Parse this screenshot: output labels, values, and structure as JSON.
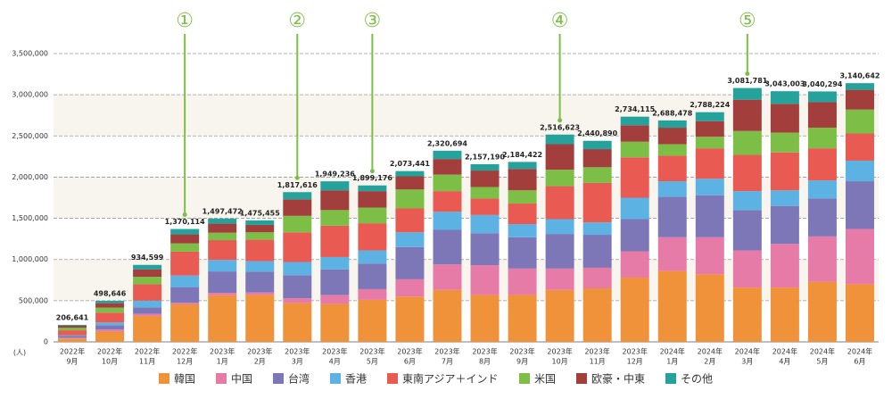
{
  "chart_data": {
    "type": "stacked_bar",
    "y_unit": "(人)",
    "categories": [
      [
        "2022年",
        "9月"
      ],
      [
        "2022年",
        "10月"
      ],
      [
        "2022年",
        "11月"
      ],
      [
        "2022年",
        "12月"
      ],
      [
        "2023年",
        "1月"
      ],
      [
        "2023年",
        "2月"
      ],
      [
        "2023年",
        "3月"
      ],
      [
        "2023年",
        "4月"
      ],
      [
        "2023年",
        "5月"
      ],
      [
        "2023年",
        "6月"
      ],
      [
        "2023年",
        "7月"
      ],
      [
        "2023年",
        "8月"
      ],
      [
        "2023年",
        "9月"
      ],
      [
        "2023年",
        "10月"
      ],
      [
        "2023年",
        "11月"
      ],
      [
        "2023年",
        "12月"
      ],
      [
        "2024年",
        "1月"
      ],
      [
        "2024年",
        "2月"
      ],
      [
        "2024年",
        "3月"
      ],
      [
        "2024年",
        "4月"
      ],
      [
        "2024年",
        "5月"
      ],
      [
        "2024年",
        "6月"
      ]
    ],
    "series": [
      {
        "name": "韓国",
        "color": "#f0923a",
        "values": [
          40000,
          125000,
          315000,
          455000,
          565000,
          570000,
          470000,
          460000,
          510000,
          550000,
          630000,
          570000,
          570000,
          630000,
          650000,
          780000,
          860000,
          820000,
          660000,
          660000,
          730000,
          700000
        ]
      },
      {
        "name": "中国",
        "color": "#e77ba8",
        "values": [
          10000,
          25000,
          25000,
          20000,
          30000,
          30000,
          60000,
          110000,
          130000,
          210000,
          310000,
          360000,
          320000,
          260000,
          250000,
          320000,
          410000,
          450000,
          450000,
          530000,
          550000,
          670000
        ]
      },
      {
        "name": "台湾",
        "color": "#7d77b8",
        "values": [
          20000,
          50000,
          80000,
          190000,
          260000,
          250000,
          280000,
          310000,
          310000,
          390000,
          420000,
          390000,
          380000,
          420000,
          400000,
          390000,
          490000,
          510000,
          490000,
          460000,
          460000,
          580000
        ]
      },
      {
        "name": "香港",
        "color": "#5cb2e3",
        "values": [
          10000,
          35000,
          80000,
          140000,
          140000,
          130000,
          160000,
          150000,
          160000,
          180000,
          220000,
          220000,
          160000,
          180000,
          150000,
          260000,
          190000,
          200000,
          230000,
          190000,
          220000,
          250000
        ]
      },
      {
        "name": "東南アジア＋インド",
        "color": "#e85a52",
        "values": [
          60000,
          120000,
          200000,
          290000,
          240000,
          260000,
          360000,
          380000,
          330000,
          290000,
          250000,
          200000,
          250000,
          400000,
          480000,
          490000,
          310000,
          370000,
          440000,
          460000,
          390000,
          330000
        ]
      },
      {
        "name": "米国",
        "color": "#7dbf46",
        "values": [
          30000,
          60000,
          90000,
          100000,
          90000,
          90000,
          200000,
          190000,
          190000,
          230000,
          200000,
          140000,
          160000,
          200000,
          190000,
          190000,
          140000,
          140000,
          290000,
          240000,
          250000,
          290000
        ]
      },
      {
        "name": "欧豪・中東",
        "color": "#a23f3d",
        "values": [
          25000,
          55000,
          90000,
          110000,
          110000,
          90000,
          200000,
          240000,
          200000,
          160000,
          190000,
          200000,
          260000,
          310000,
          220000,
          200000,
          200000,
          190000,
          380000,
          350000,
          310000,
          240000
        ]
      },
      {
        "name": "その他",
        "color": "#25a29c",
        "values": [
          11641,
          28646,
          54599,
          65114,
          62472,
          55455,
          87616,
          109236,
          69176,
          63441,
          100694,
          77190,
          84422,
          116623,
          100890,
          104115,
          88478,
          108224,
          141781,
          153003,
          130294,
          80642
        ]
      }
    ],
    "totals": [
      206641,
      498646,
      934599,
      1370114,
      1497472,
      1475455,
      1817616,
      1949236,
      1899176,
      2073441,
      2320694,
      2157190,
      2184422,
      2516623,
      2440890,
      2734115,
      2688478,
      2788224,
      3081781,
      3043003,
      3040294,
      3140642
    ],
    "totals_labels": [
      "206,641",
      "498,646",
      "934,599",
      "1,370,114",
      "1,497,472",
      "1,475,455",
      "1,817,616",
      "1,949,236",
      "1,899,176",
      "2,073,441",
      "2,320,694",
      "2,157,190",
      "2,184,422",
      "2,516,623",
      "2,440,890",
      "2,734,115",
      "2,688,478",
      "2,788,224",
      "3,081,781",
      "3,043,003",
      "3,040,294",
      "3,140,642"
    ],
    "annotations": [
      {
        "label": "①",
        "at": 3
      },
      {
        "label": "②",
        "at": 6
      },
      {
        "label": "③",
        "at": 8
      },
      {
        "label": "④",
        "at": 13
      },
      {
        "label": "⑤",
        "at": 18
      }
    ],
    "annotation_color": "#7dbf46",
    "ylim": [
      0,
      3500000
    ],
    "yticks": [
      {
        "value": 0,
        "label": "0"
      },
      {
        "value": 500000,
        "label": "500,000"
      },
      {
        "value": 1000000,
        "label": "1,000,000"
      },
      {
        "value": 1500000,
        "label": "1,500,000"
      },
      {
        "value": 2000000,
        "label": "2,000,000"
      },
      {
        "value": 2500000,
        "label": "2,500,000"
      },
      {
        "value": 3000000,
        "label": "3,000,000"
      },
      {
        "value": 3500000,
        "label": "3,500,000"
      }
    ],
    "grid": true
  }
}
